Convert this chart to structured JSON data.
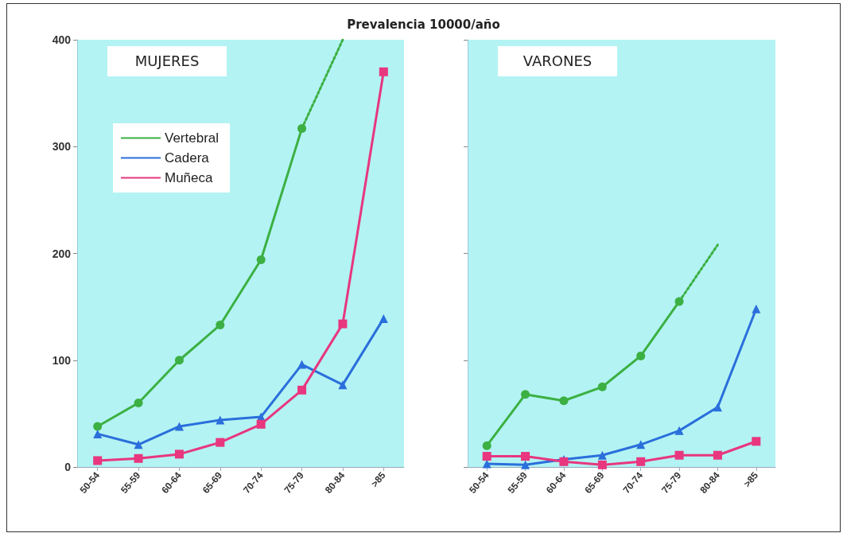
{
  "chart_data": [
    {
      "type": "line",
      "title": "Prevalencia 10000/año",
      "subtitle": "MUJERES",
      "categories": [
        "50-54",
        "55-59",
        "60-64",
        "65-69",
        "70-74",
        "75-79",
        "80-84",
        ">85"
      ],
      "series": [
        {
          "name": "Vertebral",
          "color": "#3cb043",
          "marker": "circle",
          "values": [
            38,
            60,
            100,
            133,
            194,
            317,
            null,
            null
          ]
        },
        {
          "name": "Cadera",
          "color": "#2a6fdb",
          "marker": "triangle",
          "values": [
            31,
            21,
            38,
            44,
            47,
            96,
            77,
            139
          ]
        },
        {
          "name": "Muñeca",
          "color": "#e8367f",
          "marker": "square",
          "values": [
            6,
            8,
            12,
            23,
            40,
            72,
            134,
            370
          ]
        },
        {
          "color": "#3cb043",
          "line_style": "dotted",
          "values": [
            null,
            null,
            null,
            null,
            null,
            317,
            400,
            null
          ]
        }
      ],
      "ylim": [
        0,
        400
      ],
      "yticks": [
        0,
        100,
        200,
        300,
        400
      ],
      "grid": false,
      "legend": "top left",
      "line_style": "solid"
    },
    {
      "type": "line",
      "subtitle": "VARONES",
      "categories": [
        "50-54",
        "55-59",
        "60-64",
        "65-69",
        "70-74",
        "75-79",
        "80-84",
        ">85"
      ],
      "series": [
        {
          "color": "#3cb043",
          "marker": "circle",
          "values": [
            20,
            68,
            62,
            75,
            104,
            155,
            null,
            null
          ]
        },
        {
          "color": "#2a6fdb",
          "marker": "triangle",
          "values": [
            3,
            2,
            7,
            11,
            21,
            34,
            56,
            148
          ]
        },
        {
          "color": "#e8367f",
          "marker": "square",
          "values": [
            10,
            10,
            5,
            2,
            5,
            11,
            11,
            24
          ]
        },
        {
          "color": "#3cb043",
          "line_style": "dotted",
          "values": [
            null,
            null,
            null,
            null,
            null,
            155,
            208,
            null
          ]
        }
      ],
      "ylim": [
        0,
        400
      ],
      "yticks": [
        0,
        100,
        200,
        300,
        400
      ],
      "grid": false,
      "legend": false,
      "line_style": "solid",
      "tick_labels": "x"
    }
  ]
}
